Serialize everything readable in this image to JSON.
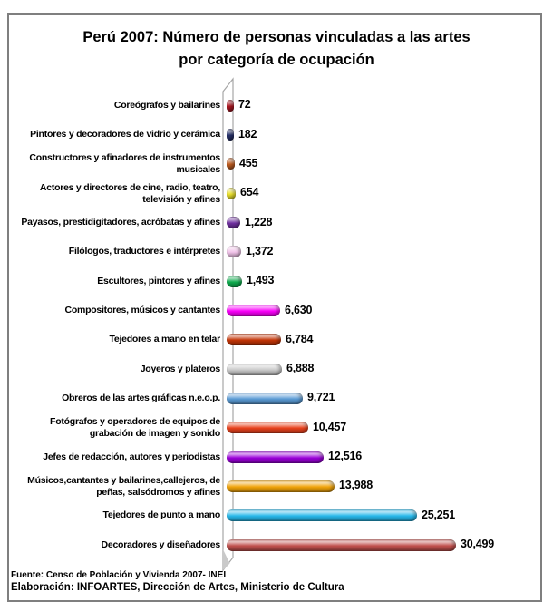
{
  "title": {
    "line1": "Perú 2007: Número de personas vinculadas a las artes",
    "line2": "por categoría de ocupación"
  },
  "footer": {
    "source": "Fuente: Censo de Población y Vivienda 2007- INEI",
    "elaboration": "Elaboración: INFOARTES, Dirección de Artes, Ministerio de Cultura"
  },
  "chart_data": {
    "type": "bar",
    "orientation": "horizontal",
    "style": "3d-cylinder",
    "title": "Perú 2007: Número de personas vinculadas a las artes por categoría de ocupación",
    "xlabel": "",
    "ylabel": "",
    "xlim": [
      0,
      32000
    ],
    "grid": false,
    "legend": false,
    "categories": [
      "Coreógrafos y bailarines",
      "Pintores y decoradores de vidrio y cerámica",
      "Constructores y afinadores de instrumentos musicales",
      "Actores y directores de cine, radio, teatro, televisión y afines",
      "Payasos, prestidigitadores, acróbatas y afines",
      "Filólogos, traductores e intérpretes",
      "Escultores, pintores y afines",
      "Compositores, músicos y cantantes",
      "Tejedores a mano en telar",
      "Joyeros y plateros",
      "Obreros de las artes gráficas n.e.o.p.",
      "Fotógrafos y operadores de equipos de grabación de imagen y sonido",
      "Jefes de redacción, autores y periodistas",
      "Músicos,cantantes y bailarines,callejeros, de peñas, salsódromos y afines",
      "Tejedores de punto a mano",
      "Decoradores y diseñadores"
    ],
    "values": [
      72,
      182,
      455,
      654,
      1228,
      1372,
      1493,
      6630,
      6784,
      6888,
      9721,
      10457,
      12516,
      13988,
      25251,
      30499
    ],
    "value_labels": [
      "72",
      "182",
      "455",
      "654",
      "1,228",
      "1,372",
      "1,493",
      "6,630",
      "6,784",
      "6,888",
      "9,721",
      "10,457",
      "12,516",
      "13,988",
      "25,251",
      "30,499"
    ],
    "bar_colors": [
      "#B01823",
      "#28336E",
      "#C35F22",
      "#EDE32F",
      "#7030A0",
      "#F2C4EA",
      "#0FAC4E",
      "#FB00FB",
      "#C33507",
      "#C9C9C9",
      "#5B9BD5",
      "#E8421D",
      "#9A00D8",
      "#F0A30A",
      "#27B8EA",
      "#C0504D"
    ]
  }
}
